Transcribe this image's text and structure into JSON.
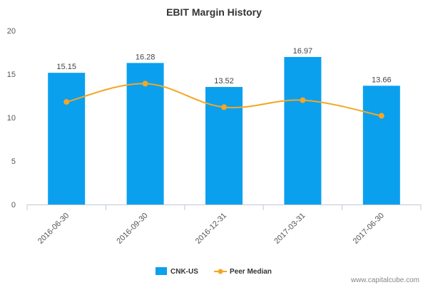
{
  "watermark": "www.capitalcube.com",
  "chart_data": {
    "type": "bar",
    "title": "EBIT Margin History",
    "xlabel": "",
    "ylabel": "",
    "categories": [
      "2016-06-30",
      "2016-09-30",
      "2016-12-31",
      "2017-03-31",
      "2017-06-30"
    ],
    "ylim": [
      0,
      20
    ],
    "yticks": [
      0,
      5,
      10,
      15,
      20
    ],
    "grid": false,
    "legend_position": "bottom-center",
    "series": [
      {
        "name": "CNK-US",
        "kind": "bar",
        "color": "#0aa0ee",
        "values": [
          15.15,
          16.28,
          13.52,
          16.97,
          13.66
        ],
        "labels": [
          "15.15",
          "16.28",
          "13.52",
          "16.97",
          "13.66"
        ]
      },
      {
        "name": "Peer Median",
        "kind": "line",
        "color": "#f5a623",
        "values": [
          11.8,
          13.9,
          11.2,
          12.0,
          10.2
        ]
      }
    ]
  }
}
